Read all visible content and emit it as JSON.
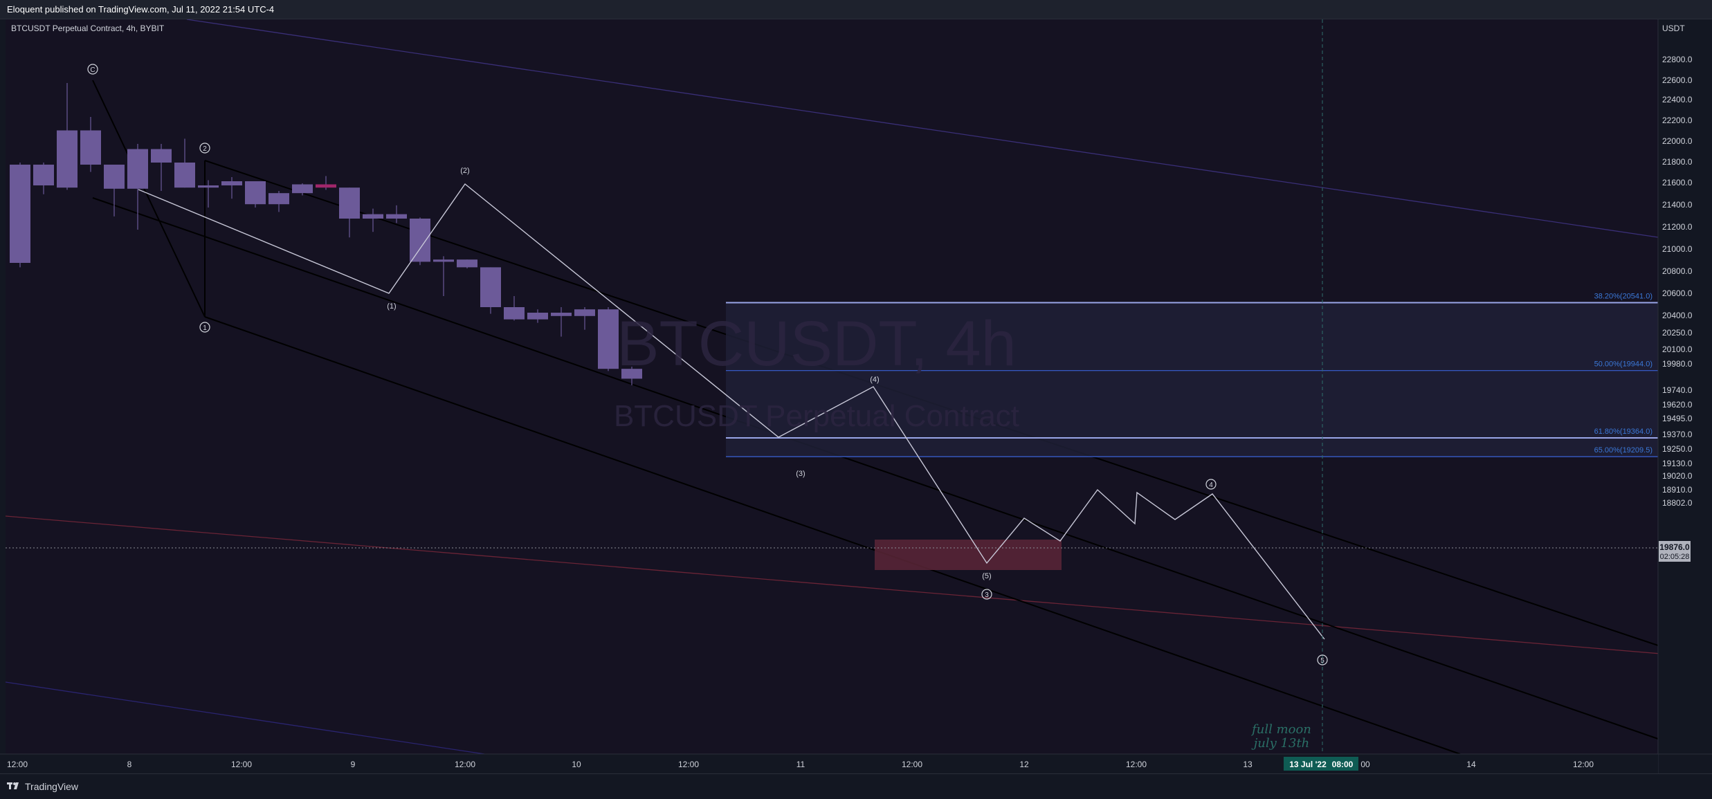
{
  "header": {
    "published_by": "Eloquent published on TradingView.com, Jul 11, 2022 21:54 UTC-4"
  },
  "footer": {
    "brand": "TradingView",
    "logo_icon": "tradingview-logo-icon"
  },
  "colors": {
    "background": "#131722",
    "plot_bg": "#151222",
    "candle": "#6c5a99",
    "candle_highlight": "#a0266a",
    "channel_lines": "#000000",
    "wave_path": "#c8c8d8",
    "fib_lines": "#3a62d8",
    "fib_text": "#3b78d8",
    "fib_zone": "#1f2036",
    "red_zone": "#5a2637",
    "last_price_bg": "#b0b3bd",
    "time_marker_bg": "#0f5c54",
    "annotation": "#2a6f66"
  },
  "chart_data": {
    "type": "candlestick",
    "title": "BTCUSDT Perpetual Contract, 4h, BYBIT",
    "watermark_symbol": "BTCUSDT, 4h",
    "watermark_name": "BTCUSDT Perpetual Contract",
    "y_axis_label": "USDT",
    "y_ticks": [
      "22800.0",
      "22600.0",
      "22400.0",
      "22200.0",
      "22000.0",
      "21800.0",
      "21600.0",
      "21400.0",
      "21200.0",
      "21000.0",
      "20800.0",
      "20600.0",
      "20400.0",
      "20250.0",
      "20100.0",
      "19980.0",
      "19740.0",
      "19620.0",
      "19495.0",
      "19370.0",
      "19250.0",
      "19130.0",
      "19020.0",
      "18910.0",
      "18802.0"
    ],
    "x_ticks": [
      "12:00",
      "8",
      "12:00",
      "9",
      "12:00",
      "10",
      "12:00",
      "11",
      "12:00",
      "12",
      "12:00",
      "13",
      "00",
      "14",
      "12:00"
    ],
    "last_price": "19876.0",
    "countdown": "02:05:28",
    "crosshair_time": "13 Jul '22",
    "crosshair_clock": "08:00",
    "candles": [
      {
        "o": 21800,
        "h": 21820,
        "l": 20860,
        "c": 20900
      },
      {
        "o": 21600,
        "h": 21820,
        "l": 21520,
        "c": 21800
      },
      {
        "o": 21580,
        "h": 22600,
        "l": 21560,
        "c": 22130
      },
      {
        "o": 22130,
        "h": 22260,
        "l": 21730,
        "c": 21800
      },
      {
        "o": 21800,
        "h": 21800,
        "l": 21320,
        "c": 21570
      },
      {
        "o": 21570,
        "h": 22000,
        "l": 21200,
        "c": 21950
      },
      {
        "o": 21950,
        "h": 22000,
        "l": 21550,
        "c": 21820
      },
      {
        "o": 21820,
        "h": 22050,
        "l": 21580,
        "c": 21580
      },
      {
        "o": 21580,
        "h": 21650,
        "l": 21400,
        "c": 21600
      },
      {
        "o": 21600,
        "h": 21680,
        "l": 21480,
        "c": 21640
      },
      {
        "o": 21640,
        "h": 21640,
        "l": 21400,
        "c": 21430
      },
      {
        "o": 21430,
        "h": 21550,
        "l": 21360,
        "c": 21530
      },
      {
        "o": 21530,
        "h": 21620,
        "l": 21510,
        "c": 21610
      },
      {
        "o": 21610,
        "h": 21690,
        "l": 21560,
        "c": 21580
      },
      {
        "o": 21580,
        "h": 21580,
        "l": 21130,
        "c": 21300
      },
      {
        "o": 21300,
        "h": 21390,
        "l": 21180,
        "c": 21340
      },
      {
        "o": 21340,
        "h": 21420,
        "l": 21260,
        "c": 21300
      },
      {
        "o": 21300,
        "h": 21310,
        "l": 20880,
        "c": 20910
      },
      {
        "o": 20910,
        "h": 20960,
        "l": 20600,
        "c": 20930
      },
      {
        "o": 20930,
        "h": 20930,
        "l": 20850,
        "c": 20860
      },
      {
        "o": 20860,
        "h": 20860,
        "l": 20440,
        "c": 20500
      },
      {
        "o": 20500,
        "h": 20600,
        "l": 20380,
        "c": 20390
      },
      {
        "o": 20390,
        "h": 20480,
        "l": 20360,
        "c": 20450
      },
      {
        "o": 20450,
        "h": 20500,
        "l": 20240,
        "c": 20420
      },
      {
        "o": 20420,
        "h": 20500,
        "l": 20300,
        "c": 20480
      },
      {
        "o": 20480,
        "h": 20500,
        "l": 19940,
        "c": 19960
      },
      {
        "o": 19960,
        "h": 19980,
        "l": 19810,
        "c": 19870
      }
    ],
    "fib_levels": [
      {
        "label": "38.20%(20541.0)",
        "price": 20541.0
      },
      {
        "label": "50.00%(19944.0)",
        "price": 19944.0
      },
      {
        "label": "61.80%(19364.0)",
        "price": 19364.0
      },
      {
        "label": "65.00%(19209.5)",
        "price": 19209.5
      }
    ],
    "wave_labels_circled": [
      "C",
      "2",
      "1",
      "3",
      "4",
      "5"
    ],
    "wave_labels_paren": [
      "(1)",
      "(2)",
      "(3)",
      "(4)",
      "(5)"
    ],
    "annotation": [
      "full moon",
      "july 13th"
    ]
  }
}
